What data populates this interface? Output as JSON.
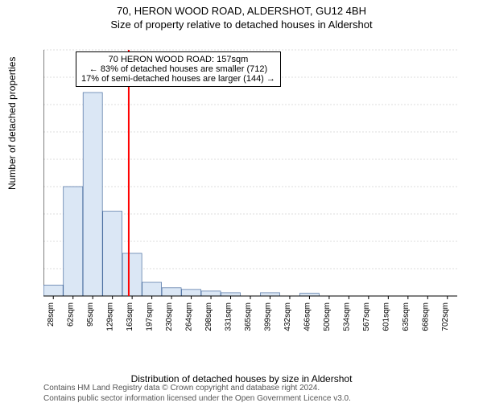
{
  "titles": {
    "line1": "70, HERON WOOD ROAD, ALDERSHOT, GU12 4BH",
    "line2": "Size of property relative to detached houses in Aldershot"
  },
  "y_axis": {
    "label": "Number of detached properties",
    "lim": [
      0,
      450
    ],
    "tick_step": 50
  },
  "x_axis": {
    "label": "Distribution of detached houses by size in Aldershot",
    "categories": [
      "28sqm",
      "62sqm",
      "95sqm",
      "129sqm",
      "163sqm",
      "197sqm",
      "230sqm",
      "264sqm",
      "298sqm",
      "331sqm",
      "365sqm",
      "399sqm",
      "432sqm",
      "466sqm",
      "500sqm",
      "534sqm",
      "567sqm",
      "601sqm",
      "635sqm",
      "668sqm",
      "702sqm"
    ]
  },
  "bars": {
    "values": [
      20,
      200,
      372,
      155,
      78,
      25,
      15,
      12,
      9,
      6,
      0,
      6,
      0,
      5,
      0,
      0,
      0,
      0,
      0,
      0,
      0
    ],
    "fill_color": "#dbe7f5",
    "stroke_color": "#4a6ea0",
    "bar_width": 0.98
  },
  "marker": {
    "x_value_sqm": 157,
    "color": "#ff0000"
  },
  "annotation": {
    "line1": "70 HERON WOOD ROAD: 157sqm",
    "line2": "← 83% of detached houses are smaller (712)",
    "line3": "17% of semi-detached houses are larger (144) →"
  },
  "footer": {
    "line1": "Contains HM Land Registry data © Crown copyright and database right 2024.",
    "line2": "Contains public sector information licensed under the Open Government Licence v3.0."
  },
  "style": {
    "background_color": "#ffffff",
    "grid_color": "#bbbbbb",
    "text_color": "#000000",
    "footer_color": "#555555",
    "title_fontsize": 13,
    "label_fontsize": 12,
    "tick_fontsize": 11
  }
}
